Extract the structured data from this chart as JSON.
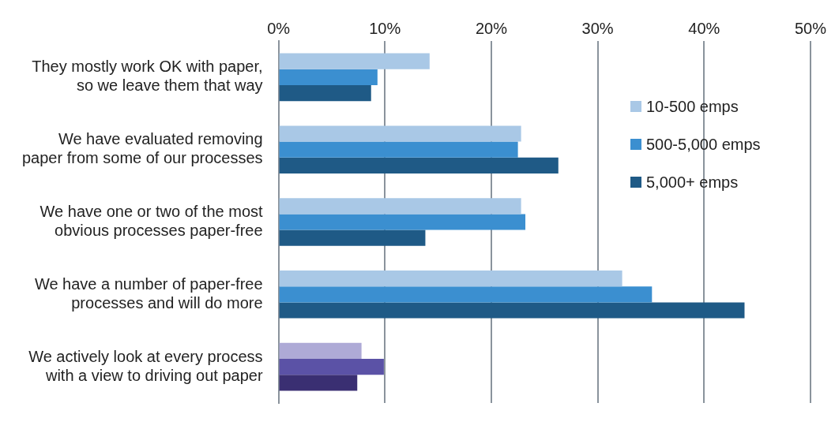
{
  "chart_data": {
    "type": "bar",
    "orientation": "horizontal",
    "categories": [
      "They mostly work OK with paper, so we leave them that way",
      "We have evaluated removing paper from some of our processes",
      "We have one or two of the most obvious processes paper-free",
      "We have a number of paper-free processes and will do more",
      "We actively look at every process with a view to driving out paper"
    ],
    "series": [
      {
        "name": "10-500 emps",
        "color": "#a9c8e6",
        "colors": [
          "#a9c8e6",
          "#a9c8e6",
          "#a9c8e6",
          "#a9c8e6",
          "#aeaad6"
        ],
        "values": [
          14.2,
          22.8,
          22.8,
          32.3,
          7.8
        ]
      },
      {
        "name": "500-5,000 emps",
        "color": "#3b8fd0",
        "colors": [
          "#3b8fd0",
          "#3b8fd0",
          "#3b8fd0",
          "#3b8fd0",
          "#5b52a6"
        ],
        "values": [
          9.3,
          22.5,
          23.2,
          35.1,
          9.9
        ]
      },
      {
        "name": "5,000+ emps",
        "color": "#1f5a86",
        "colors": [
          "#1f5a86",
          "#1f5a86",
          "#1f5a86",
          "#1f5a86",
          "#3a2f72"
        ],
        "values": [
          8.7,
          26.3,
          13.8,
          43.8,
          7.4
        ]
      }
    ],
    "xlim": [
      0,
      50
    ],
    "xticks": [
      {
        "value": 0,
        "label": "0%"
      },
      {
        "value": 10,
        "label": "10%"
      },
      {
        "value": 20,
        "label": "20%"
      },
      {
        "value": 30,
        "label": "30%"
      },
      {
        "value": 40,
        "label": "40%"
      },
      {
        "value": 50,
        "label": "50%"
      }
    ],
    "grid": "x",
    "legend": "top right"
  }
}
